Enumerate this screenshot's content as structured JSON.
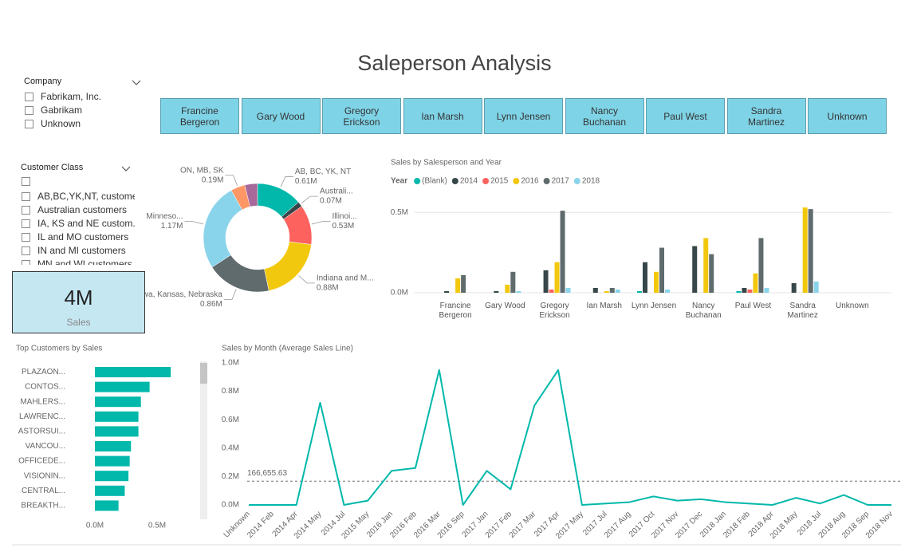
{
  "page": {
    "title": "Saleperson Analysis"
  },
  "slicers": [
    {
      "title": "Company",
      "items": [
        "Fabrikam, Inc.",
        "Gabrikam",
        "Unknown"
      ]
    },
    {
      "title": "Customer Class",
      "items": [
        "AB,BC,YK,NT, customers",
        "Australian customers",
        "IA, KS and NE custom...",
        "IL and MO customers",
        "IN and MI customers",
        "MN and WI customers"
      ]
    }
  ],
  "salespeople": [
    "Francine Bergeron",
    "Gary Wood",
    "Gregory Erickson",
    "Ian Marsh",
    "Lynn Jensen",
    "Nancy Buchanan",
    "Paul West",
    "Sandra Martinez",
    "Unknown"
  ],
  "card": {
    "value": "4M",
    "label": "Sales"
  },
  "chart_data": [
    {
      "type": "donut",
      "categories": [
        "AB, BC, YK, NT",
        "Australi...",
        "Illinoi...",
        "Indiana and M...",
        "Iowa, Kansas, Nebraska",
        "Minneso...",
        "ON, MB, SK",
        null
      ],
      "values": [
        0.61,
        0.07,
        0.53,
        0.88,
        0.86,
        1.17,
        0.19,
        0.17
      ],
      "value_labels": [
        "0.61M",
        "0.07M",
        "0.53M",
        "0.88M",
        "0.86M",
        "1.17M",
        "0.19M",
        null
      ],
      "colors": [
        "#01B8AA",
        "#374649",
        "#FD625E",
        "#F2C80F",
        "#5F6B6D",
        "#8AD4EB",
        "#FE9666",
        "#A66999"
      ]
    },
    {
      "type": "bar",
      "title": "Sales by Salesperson and Year",
      "legend_title": "Year",
      "categories": [
        "Francine Bergeron",
        "Gary Wood",
        "Gregory Erickson",
        "Ian Marsh",
        "Lynn Jensen",
        "Nancy Buchanan",
        "Paul West",
        "Sandra Martinez",
        "Unknown"
      ],
      "series": [
        {
          "name": "(Blank)",
          "color": "#01B8AA",
          "values": [
            null,
            null,
            null,
            null,
            0.01,
            null,
            0.01,
            null,
            null
          ]
        },
        {
          "name": "2014",
          "color": "#374649",
          "values": [
            0.01,
            0.01,
            0.14,
            0.03,
            0.19,
            0.29,
            0.03,
            0.06,
            null
          ]
        },
        {
          "name": "2015",
          "color": "#FD625E",
          "values": [
            null,
            null,
            0.02,
            null,
            null,
            null,
            0.02,
            null,
            null
          ]
        },
        {
          "name": "2016",
          "color": "#F2C80F",
          "values": [
            0.09,
            0.05,
            0.19,
            0.01,
            0.13,
            0.34,
            0.12,
            0.53,
            null
          ]
        },
        {
          "name": "2017",
          "color": "#5F6B6D",
          "values": [
            0.11,
            0.13,
            0.51,
            0.03,
            0.28,
            0.24,
            0.34,
            0.52,
            null
          ]
        },
        {
          "name": "2018",
          "color": "#8AD4EB",
          "values": [
            null,
            0.01,
            0.03,
            0.02,
            0.02,
            null,
            0.03,
            0.07,
            null
          ]
        }
      ],
      "ylim": [
        0,
        0.63
      ],
      "yticks": [
        {
          "value": 0,
          "label": "0.0M"
        },
        {
          "value": 0.5,
          "label": "0.5M"
        }
      ],
      "grid": true
    },
    {
      "type": "hbar",
      "title": "Top Customers by Sales",
      "categories": [
        "PLAZAON...",
        "CONTOS...",
        "MAHLERS...",
        "LAWRENC...",
        "ASTORSUI...",
        "VANCOU...",
        "OFFICEDE...",
        "VISIONIN...",
        "CENTRAL...",
        "BREAKTH..."
      ],
      "values": [
        0.61,
        0.44,
        0.37,
        0.35,
        0.35,
        0.29,
        0.28,
        0.27,
        0.24,
        0.19
      ],
      "color": "#01B8AA",
      "xlim": [
        0,
        0.62
      ],
      "xticks": [
        {
          "value": 0,
          "label": "0.0M"
        },
        {
          "value": 0.5,
          "label": "0.5M"
        }
      ]
    },
    {
      "type": "line",
      "title": "Sales by Month (Average Sales Line)",
      "categories": [
        "Unknown",
        "2014 Feb",
        "2014 Apr",
        "2014 May",
        "2014 Jul",
        "2015 May",
        "2016 Jan",
        "2016 Feb",
        "2016 Mar",
        "2016 Sep",
        "2017 Jan",
        "2017 Feb",
        "2017 Mar",
        "2017 Apr",
        "2017 May",
        "2017 Jul",
        "2017 Aug",
        "2017 Oct",
        "2017 Nov",
        "2017 Dec",
        "2018 Jan",
        "2018 Feb",
        "2018 Apr",
        "2018 May",
        "2018 Jul",
        "2018 Aug",
        "2018 Sep",
        "2018 Nov"
      ],
      "values": [
        0,
        0,
        0,
        0.72,
        0,
        0.03,
        0.24,
        0.26,
        0.95,
        0,
        0.24,
        0.11,
        0.7,
        0.95,
        0,
        0.01,
        0.02,
        0.06,
        0.03,
        0.04,
        0.02,
        0.01,
        0,
        0.05,
        0.01,
        0.07,
        0,
        0
      ],
      "color": "#01B8AA",
      "ylim": [
        0,
        1
      ],
      "yticks": [
        {
          "value": 0,
          "label": "0.0M"
        },
        {
          "value": 0.2,
          "label": "0.2M"
        },
        {
          "value": 0.4,
          "label": "0.4M"
        },
        {
          "value": 0.6,
          "label": "0.6M"
        },
        {
          "value": 0.8,
          "label": "0.8M"
        },
        {
          "value": 1,
          "label": "1.0M"
        }
      ],
      "average_line": {
        "value": 0.16665563,
        "label": "166,655.63"
      }
    }
  ]
}
